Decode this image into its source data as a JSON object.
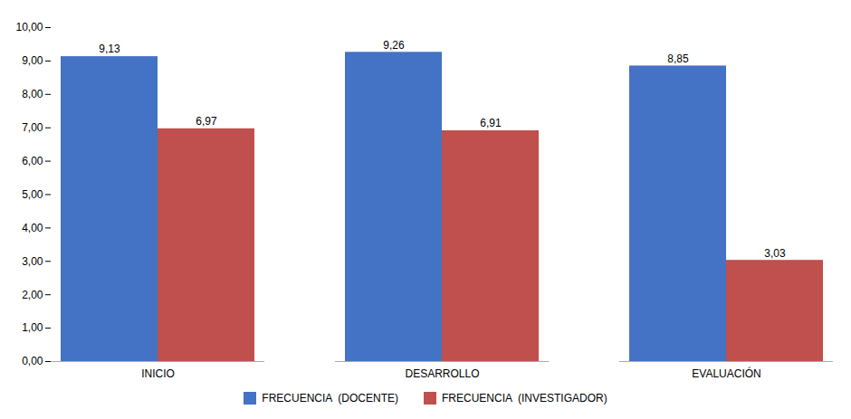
{
  "chart_data": {
    "type": "bar",
    "categories": [
      "INICIO",
      "DESARROLLO",
      "EVALUACIÓN"
    ],
    "series": [
      {
        "name": "FRECUENCIA  (DOCENTE)",
        "color": "#4472C4",
        "values": [
          9.13,
          9.26,
          8.85
        ],
        "value_labels": [
          "9,13",
          "9,26",
          "8,85"
        ]
      },
      {
        "name": "FRECUENCIA  (INVESTIGADOR)",
        "color": "#C0504D",
        "values": [
          6.97,
          6.91,
          3.03
        ],
        "value_labels": [
          "6,97",
          "6,91",
          "3,03"
        ]
      }
    ],
    "ylim": [
      0,
      10.0
    ],
    "yticks": [
      {
        "value": 0.0,
        "label": "0,00"
      },
      {
        "value": 1.0,
        "label": "1,00"
      },
      {
        "value": 2.0,
        "label": "2,00"
      },
      {
        "value": 3.0,
        "label": "3,00"
      },
      {
        "value": 4.0,
        "label": "4,00"
      },
      {
        "value": 5.0,
        "label": "5,00"
      },
      {
        "value": 6.0,
        "label": "6,00"
      },
      {
        "value": 7.0,
        "label": "7,00"
      },
      {
        "value": 8.0,
        "label": "8,00"
      },
      {
        "value": 9.0,
        "label": "9,00"
      },
      {
        "value": 10.0,
        "label": "10,00"
      }
    ],
    "grid": false,
    "legend": "bottom",
    "data_labels": true
  }
}
